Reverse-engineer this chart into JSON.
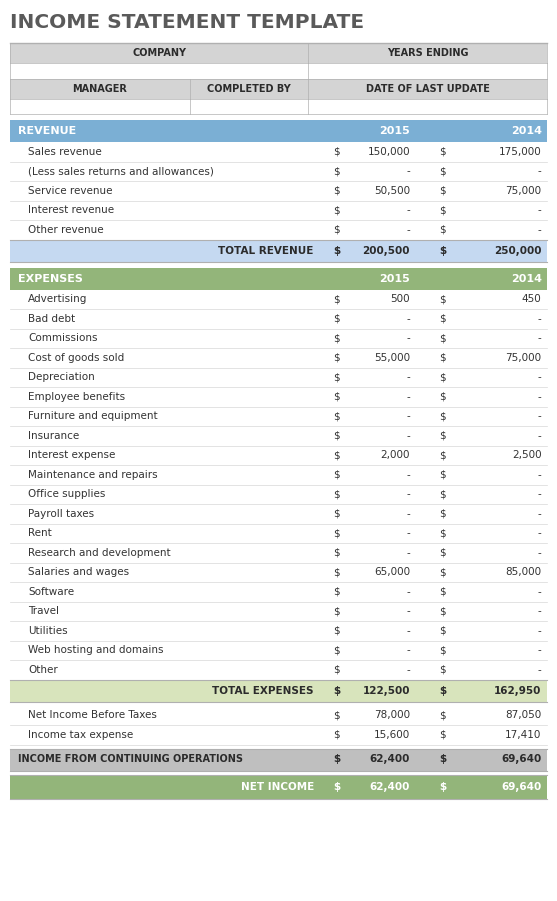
{
  "title": "INCOME STATEMENT TEMPLATE",
  "title_color": "#5a5a5a",
  "bg_color": "#ffffff",
  "header_bg": "#d4d4d4",
  "header_text_color": "#2b2b2b",
  "revenue_header_bg": "#7bafd4",
  "revenue_header_text": "#ffffff",
  "total_revenue_bg": "#c5d9f1",
  "total_revenue_text": "#2b2b2b",
  "expenses_header_bg": "#93b57a",
  "expenses_header_text": "#ffffff",
  "total_expenses_bg": "#d8e4bc",
  "total_expenses_text": "#2b2b2b",
  "income_ops_bg": "#bfbfbf",
  "income_ops_text": "#2b2b2b",
  "net_income_bg": "#93b57a",
  "net_income_text": "#ffffff",
  "row_bg": "#ffffff",
  "row_text": "#333333",
  "border_color": "#b0b0b0",
  "revenue_rows": [
    {
      "label": "Sales revenue",
      "val1": "150,000",
      "val2": "175,000"
    },
    {
      "label": "(Less sales returns and allowances)",
      "val1": "-",
      "val2": "-"
    },
    {
      "label": "Service revenue",
      "val1": "50,500",
      "val2": "75,000"
    },
    {
      "label": "Interest revenue",
      "val1": "-",
      "val2": "-"
    },
    {
      "label": "Other revenue",
      "val1": "-",
      "val2": "-"
    }
  ],
  "expense_rows": [
    {
      "label": "Advertising",
      "val1": "500",
      "val2": "450"
    },
    {
      "label": "Bad debt",
      "val1": "-",
      "val2": "-"
    },
    {
      "label": "Commissions",
      "val1": "-",
      "val2": "-"
    },
    {
      "label": "Cost of goods sold",
      "val1": "55,000",
      "val2": "75,000"
    },
    {
      "label": "Depreciation",
      "val1": "-",
      "val2": "-"
    },
    {
      "label": "Employee benefits",
      "val1": "-",
      "val2": "-"
    },
    {
      "label": "Furniture and equipment",
      "val1": "-",
      "val2": "-"
    },
    {
      "label": "Insurance",
      "val1": "-",
      "val2": "-"
    },
    {
      "label": "Interest expense",
      "val1": "2,000",
      "val2": "2,500"
    },
    {
      "label": "Maintenance and repairs",
      "val1": "-",
      "val2": "-"
    },
    {
      "label": "Office supplies",
      "val1": "-",
      "val2": "-"
    },
    {
      "label": "Payroll taxes",
      "val1": "-",
      "val2": "-"
    },
    {
      "label": "Rent",
      "val1": "-",
      "val2": "-"
    },
    {
      "label": "Research and development",
      "val1": "-",
      "val2": "-"
    },
    {
      "label": "Salaries and wages",
      "val1": "65,000",
      "val2": "85,000"
    },
    {
      "label": "Software",
      "val1": "-",
      "val2": "-"
    },
    {
      "label": "Travel",
      "val1": "-",
      "val2": "-"
    },
    {
      "label": "Utilities",
      "val1": "-",
      "val2": "-"
    },
    {
      "label": "Web hosting and domains",
      "val1": "-",
      "val2": "-"
    },
    {
      "label": "Other",
      "val1": "-",
      "val2": "-"
    }
  ],
  "post_expense_rows": [
    {
      "label": "Net Income Before Taxes",
      "val1": "78,000",
      "val2": "87,050"
    },
    {
      "label": "Income tax expense",
      "val1": "15,600",
      "val2": "17,410"
    }
  ]
}
